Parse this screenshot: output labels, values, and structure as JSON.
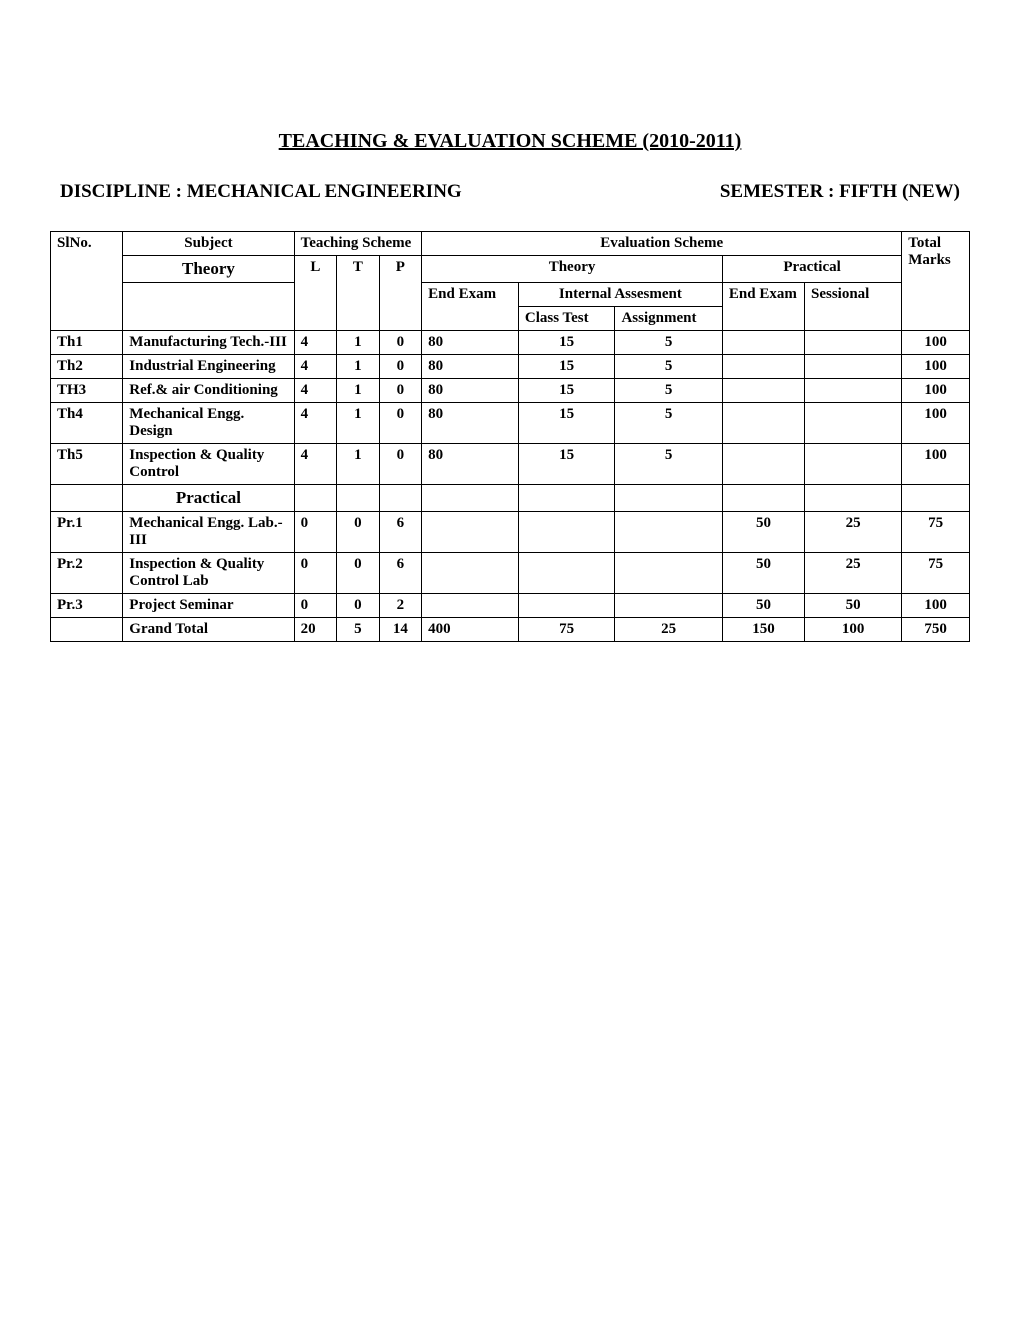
{
  "title": "TEACHING & EVALUATION SCHEME (2010-2011)",
  "discipline_label": "DISCIPLINE :  MECHANICAL ENGINEERING",
  "semester_label": "SEMESTER : FIFTH (NEW)",
  "headers": {
    "slno": "SlNo.",
    "subject": "Subject",
    "teaching_scheme": "Teaching Scheme",
    "evaluation_scheme": "Evaluation Scheme",
    "total_marks": "Total Marks",
    "theory_section": "Theory",
    "practical_section": "Practical",
    "L": "L",
    "T": "T",
    "P": "P",
    "theory_eval": "Theory",
    "practical_eval": "Practical",
    "end_exam": "End Exam",
    "internal_assessment": "Internal Assesment",
    "class_test": "Class Test",
    "assignment": "Assignment",
    "p_end_exam": "End Exam",
    "sessional": "Sessional",
    "grand_total": "Grand Total"
  },
  "theory_rows": [
    {
      "sl": "Th1",
      "subject": "Manufacturing Tech.-III",
      "L": "4",
      "T": "1",
      "P": "0",
      "end": "80",
      "ct": "15",
      "asg": "5",
      "pend": "",
      "sess": "",
      "total": "100"
    },
    {
      "sl": "Th2",
      "subject": "Industrial Engineering",
      "L": "4",
      "T": "1",
      "P": "0",
      "end": "80",
      "ct": "15",
      "asg": "5",
      "pend": "",
      "sess": "",
      "total": "100"
    },
    {
      "sl": "TH3",
      "subject": "Ref.& air Conditioning",
      "L": "4",
      "T": "1",
      "P": "0",
      "end": "80",
      "ct": "15",
      "asg": "5",
      "pend": "",
      "sess": "",
      "total": "100"
    },
    {
      "sl": "Th4",
      "subject": "Mechanical Engg. Design",
      "L": "4",
      "T": "1",
      "P": "0",
      "end": "80",
      "ct": "15",
      "asg": "5",
      "pend": "",
      "sess": "",
      "total": "100"
    },
    {
      "sl": "Th5",
      "subject": "Inspection & Quality Control",
      "L": "4",
      "T": "1",
      "P": "0",
      "end": "80",
      "ct": "15",
      "asg": "5",
      "pend": "",
      "sess": "",
      "total": "100"
    }
  ],
  "practical_rows": [
    {
      "sl": "Pr.1",
      "subject": "Mechanical Engg. Lab.-III",
      "L": "0",
      "T": "0",
      "P": "6",
      "end": "",
      "ct": "",
      "asg": "",
      "pend": "50",
      "sess": "25",
      "total": "75"
    },
    {
      "sl": "Pr.2",
      "subject": "Inspection & Quality Control Lab",
      "L": "0",
      "T": "0",
      "P": "6",
      "end": "",
      "ct": "",
      "asg": "",
      "pend": "50",
      "sess": "25",
      "total": "75"
    },
    {
      "sl": "Pr.3",
      "subject": "Project Seminar",
      "L": "0",
      "T": "0",
      "P": "2",
      "end": "",
      "ct": "",
      "asg": "",
      "pend": "50",
      "sess": "50",
      "total": "100"
    }
  ],
  "grand_total": {
    "L": "20",
    "T": "5",
    "P": "14",
    "end": "400",
    "ct": "75",
    "asg": "25",
    "pend": "150",
    "sess": "100",
    "total": "750"
  }
}
